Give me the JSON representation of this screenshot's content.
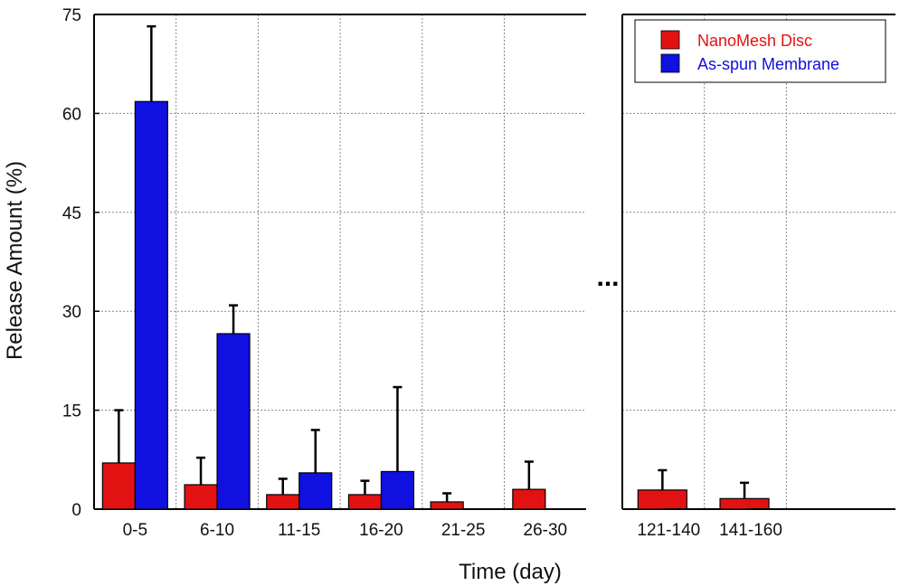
{
  "chart_data": {
    "type": "bar",
    "xlabel": "Time (day)",
    "ylabel": "Release Amount (%)",
    "ylim": [
      0,
      75
    ],
    "yticks": [
      "0",
      "15",
      "30",
      "45",
      "60",
      "75"
    ],
    "grid": true,
    "legend_position": "top-right",
    "axis_break_text": "...",
    "categories": [
      "0-5",
      "6-10",
      "11-15",
      "16-20",
      "21-25",
      "26-30",
      "121-140",
      "141-160"
    ],
    "series": [
      {
        "name": "NanoMesh Disc",
        "color": "#e31212",
        "values": [
          7.0,
          3.7,
          2.2,
          2.2,
          1.1,
          3.0,
          2.9,
          1.6
        ],
        "errors": [
          8.0,
          4.1,
          2.4,
          2.1,
          1.3,
          4.2,
          3.0,
          2.4
        ]
      },
      {
        "name": "As-spun Membrane",
        "color": "#1010e0",
        "values": [
          61.8,
          26.6,
          5.5,
          5.7,
          0,
          0,
          0,
          0
        ],
        "errors": [
          11.4,
          4.3,
          6.5,
          12.8,
          0,
          0,
          0,
          0
        ]
      }
    ]
  }
}
